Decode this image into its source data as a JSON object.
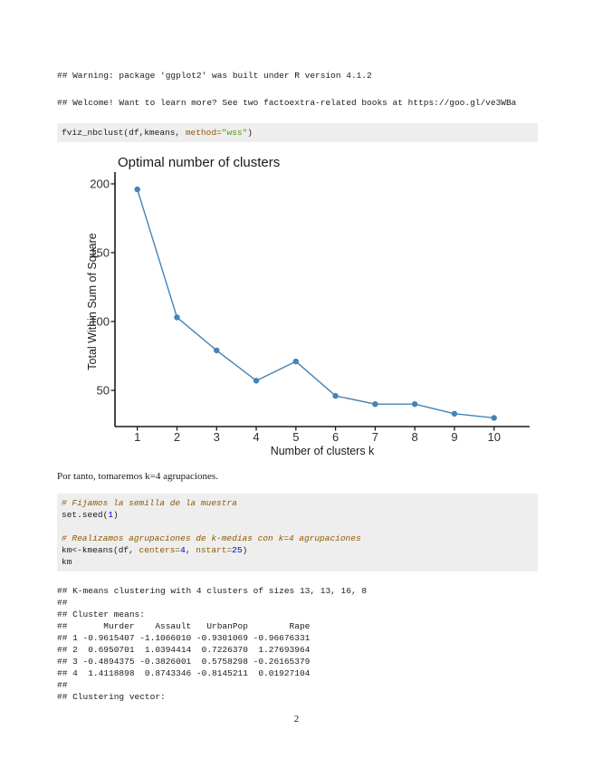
{
  "page": {
    "number": "2"
  },
  "console_top": {
    "warning_line": "## Warning: package 'ggplot2' was built under R version 4.1.2",
    "welcome_line": "## Welcome! Want to learn more? See two factoextra-related books at https://goo.gl/ve3WBa"
  },
  "syntax_colors": {
    "plain": "#1a1a1a",
    "comment": "#8f5902",
    "arg": "#8f5902",
    "num": "#0000cf",
    "str": "#4e9a06"
  },
  "code_blocks": {
    "fviz": {
      "lines": [
        [
          {
            "t": "fviz_nbclust(df,kmeans, ",
            "c": "plain"
          },
          {
            "t": "method=",
            "c": "arg"
          },
          {
            "t": "\"wss\"",
            "c": "str"
          },
          {
            "t": ")",
            "c": "plain"
          }
        ]
      ]
    },
    "kmeans": {
      "lines": [
        [
          {
            "t": "# Fijamos la semilla de la muestra",
            "c": "comment"
          }
        ],
        [
          {
            "t": "set.seed(",
            "c": "plain"
          },
          {
            "t": "1",
            "c": "num"
          },
          {
            "t": ")",
            "c": "plain"
          }
        ],
        [],
        [
          {
            "t": "# Realizamos agrupaciones de k-medias con k=4 agrupaciones",
            "c": "comment"
          }
        ],
        [
          {
            "t": "km<-kmeans(df, ",
            "c": "plain"
          },
          {
            "t": "centers=",
            "c": "arg"
          },
          {
            "t": "4",
            "c": "num"
          },
          {
            "t": ", ",
            "c": "plain"
          },
          {
            "t": "nstart=",
            "c": "arg"
          },
          {
            "t": "25",
            "c": "num"
          },
          {
            "t": ")",
            "c": "plain"
          }
        ],
        [
          {
            "t": "km",
            "c": "plain"
          }
        ]
      ]
    }
  },
  "body": {
    "paragraph": "Por tanto, tomaremos k=4 agrupaciones."
  },
  "r_output": {
    "lines": [
      "## K-means clustering with 4 clusters of sizes 13, 13, 16, 8",
      "##",
      "## Cluster means:",
      "##       Murder    Assault   UrbanPop        Rape",
      "## 1 -0.9615407 -1.1066010 -0.9301069 -0.96676331",
      "## 2  0.6950701  1.0394414  0.7226370  1.27693964",
      "## 3 -0.4894375 -0.3826001  0.5758298 -0.26165379",
      "## 4  1.4118898  0.8743346 -0.8145211  0.01927104",
      "##",
      "## Clustering vector:"
    ]
  },
  "chart_data": {
    "type": "line",
    "title": "Optimal number of clusters",
    "xlabel": "Number of clusters k",
    "ylabel": "Total Within Sum of Square",
    "x": [
      1,
      2,
      3,
      4,
      5,
      6,
      7,
      8,
      9,
      10
    ],
    "values": [
      196,
      103,
      79,
      57,
      71,
      46,
      40,
      40,
      33,
      30
    ],
    "xticks": [
      1,
      2,
      3,
      4,
      5,
      6,
      7,
      8,
      9,
      10
    ],
    "yticks": [
      50,
      100,
      150,
      200
    ],
    "xlim": [
      0.45,
      10.55
    ],
    "ylim": [
      24,
      208
    ],
    "grid": false,
    "legend": "none",
    "line_color": "#4682b4",
    "marker_color": "#4682b4",
    "axis_color": "#1a1a1a"
  }
}
